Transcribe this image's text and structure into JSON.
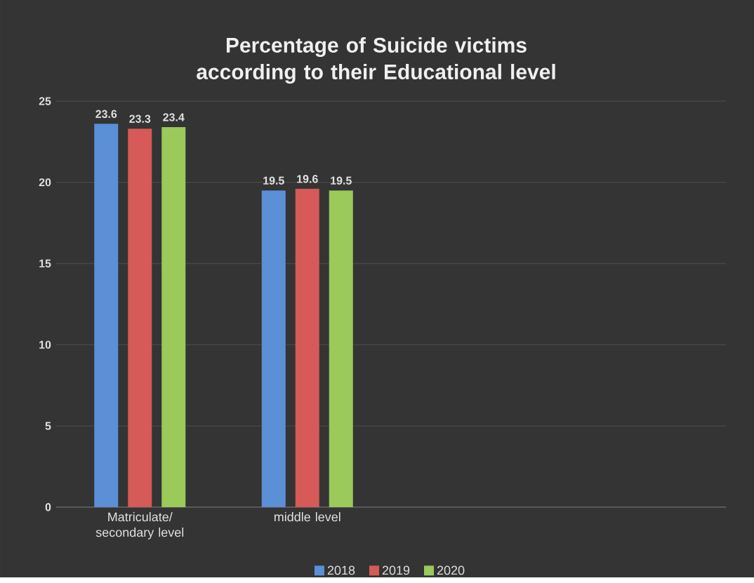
{
  "chart_data": {
    "type": "bar",
    "title": "Percentage of Suicide victims according to their Educational level",
    "categories": [
      "Matriculate/ secondary level",
      "middle level",
      null,
      null
    ],
    "series": [
      {
        "name": "2018",
        "color": "#5b8fd6",
        "values": [
          23.6,
          19.5,
          null,
          null
        ]
      },
      {
        "name": "2019",
        "color": "#d65a57",
        "values": [
          23.3,
          19.6,
          null,
          null
        ]
      },
      {
        "name": "2020",
        "color": "#9bc95a",
        "values": [
          23.4,
          19.5,
          null,
          null
        ]
      }
    ],
    "ylim": [
      0,
      25
    ],
    "yticks": [
      0,
      5,
      10,
      15,
      20,
      25
    ],
    "grid": "y",
    "legend": "bottom",
    "data_labels": true
  }
}
